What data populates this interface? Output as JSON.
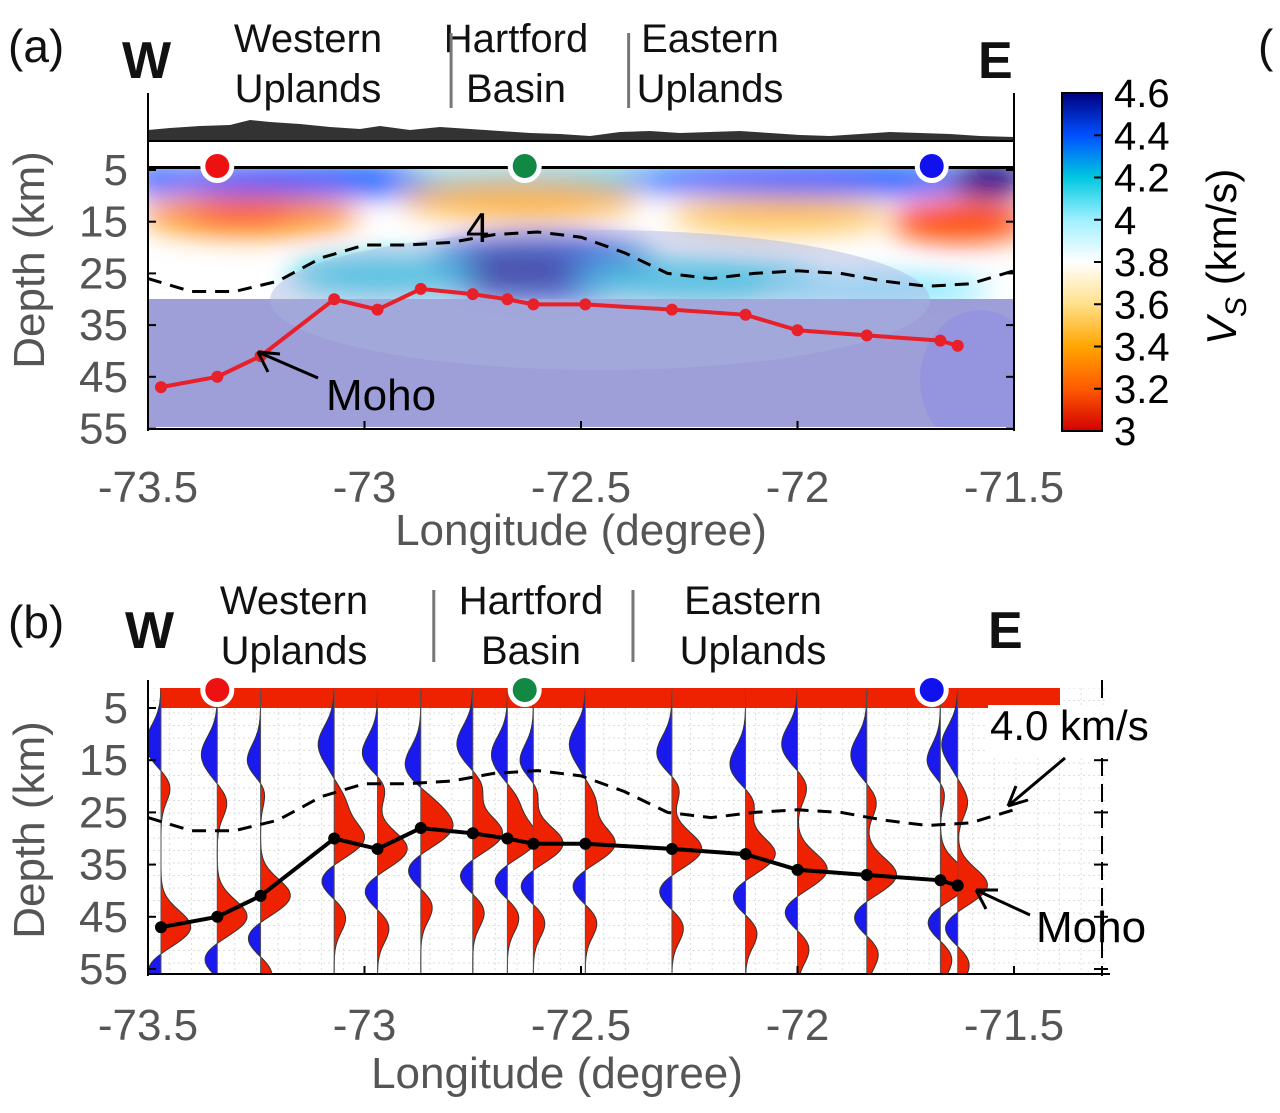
{
  "chart_data": [
    {
      "type": "heatmap",
      "panel_label": "(a)",
      "west_label": "W",
      "east_label": "E",
      "regions": [
        {
          "line1": "Western",
          "line2": "Uplands",
          "lon": -73.15
        },
        {
          "line1": "Hartford",
          "line2": "Basin",
          "lon": -72.6
        },
        {
          "line1": "Eastern",
          "line2": "Uplands",
          "lon": -72.15
        }
      ],
      "region_dividers": [
        -72.8,
        -72.39
      ],
      "xlabel": "Longitude (degree)",
      "ylabel": "Depth (km)",
      "xlim": [
        -73.5,
        -71.5
      ],
      "ylim": [
        55,
        0
      ],
      "xticks": [
        "-73.5",
        "-73",
        "-72.5",
        "-72",
        "-71.5"
      ],
      "xtick_values": [
        -73.5,
        -73,
        -72.5,
        -72,
        -71.5
      ],
      "yticks": [
        "5",
        "15",
        "25",
        "35",
        "45",
        "55"
      ],
      "ytick_values": [
        5,
        15,
        25,
        35,
        45,
        55
      ],
      "colorbar": {
        "label": "V",
        "label_sub": "S",
        "label_unit": " (km/s)",
        "ticks": [
          "4.6",
          "4.4",
          "4.2",
          "4",
          "3.8",
          "3.6",
          "3.4",
          "3.2",
          "3"
        ],
        "tick_values": [
          4.6,
          4.4,
          4.2,
          4.0,
          3.8,
          3.6,
          3.4,
          3.2,
          3.0
        ],
        "range": [
          3.0,
          4.6
        ],
        "colors": [
          "#d10000",
          "#ff5a00",
          "#ffa500",
          "#ffe08a",
          "#ffffff",
          "#9ff0ff",
          "#00c8e0",
          "#0050ff",
          "#000080"
        ]
      },
      "contour_label": "4",
      "contour_4kms": {
        "x": [
          -73.5,
          -73.4,
          -73.3,
          -73.2,
          -73.1,
          -73.0,
          -72.9,
          -72.8,
          -72.7,
          -72.6,
          -72.5,
          -72.4,
          -72.3,
          -72.2,
          -72.1,
          -72.0,
          -71.9,
          -71.8,
          -71.7,
          -71.6,
          -71.5
        ],
        "y": [
          26,
          28.5,
          28.5,
          26.5,
          22,
          19.5,
          19.5,
          19,
          17.5,
          17,
          18,
          21,
          25,
          26,
          25,
          24.5,
          25,
          26.5,
          27.5,
          27,
          24.5
        ]
      },
      "moho_label": "Moho",
      "moho": {
        "x": [
          -73.47,
          -73.34,
          -73.24,
          -73.07,
          -72.97,
          -72.87,
          -72.75,
          -72.67,
          -72.61,
          -72.49,
          -72.29,
          -72.12,
          -72.0,
          -71.84,
          -71.67,
          -71.63
        ],
        "y": [
          47,
          45,
          41,
          30,
          32,
          28,
          29,
          30,
          31,
          31,
          32,
          33,
          36,
          37,
          38,
          39
        ]
      },
      "stations": [
        {
          "lon": -73.34,
          "color": "#ee1111"
        },
        {
          "lon": -72.63,
          "color": "#118844"
        },
        {
          "lon": -71.69,
          "color": "#1111ee"
        }
      ],
      "masked_below_km": 30,
      "grid": false
    },
    {
      "type": "line",
      "panel_label": "(b)",
      "west_label": "W",
      "east_label": "E",
      "regions": [
        {
          "line1": "Western",
          "line2": "Uplands",
          "lon": -73.15
        },
        {
          "line1": "Hartford",
          "line2": "Basin",
          "lon": -72.6
        },
        {
          "line1": "Eastern",
          "line2": "Uplands",
          "lon": -72.05
        }
      ],
      "region_dividers": [
        -72.84,
        -72.38
      ],
      "xlabel": "Longitude (degree)",
      "ylabel": "Depth (km)",
      "xlim": [
        -73.5,
        -71.3
      ],
      "ylim": [
        55,
        0
      ],
      "xticks": [
        "-73.5",
        "-73",
        "-72.5",
        "-72",
        "-71.5"
      ],
      "xtick_values": [
        -73.5,
        -73,
        -72.5,
        -72,
        -71.5
      ],
      "yticks": [
        "5",
        "15",
        "25",
        "35",
        "45",
        "55"
      ],
      "ytick_values": [
        5,
        15,
        25,
        35,
        45,
        55
      ],
      "contour_label": "4.0 km/s",
      "contour_4kms": {
        "x": [
          -73.5,
          -73.4,
          -73.3,
          -73.2,
          -73.1,
          -73.0,
          -72.9,
          -72.8,
          -72.7,
          -72.6,
          -72.5,
          -72.4,
          -72.3,
          -72.2,
          -72.1,
          -72.0,
          -71.9,
          -71.8,
          -71.7,
          -71.6,
          -71.5
        ],
        "y": [
          26,
          28.5,
          28.5,
          26.5,
          22,
          19.5,
          19.5,
          19,
          17.5,
          17,
          18,
          21,
          25,
          26,
          25,
          24.5,
          25,
          26.5,
          27.5,
          27,
          24.5
        ]
      },
      "moho_label": "Moho",
      "moho": {
        "x": [
          -73.47,
          -73.34,
          -73.24,
          -73.07,
          -72.97,
          -72.87,
          -72.75,
          -72.67,
          -72.61,
          -72.49,
          -72.29,
          -72.12,
          -72.0,
          -71.84,
          -71.67,
          -71.63
        ],
        "y": [
          47,
          45,
          41,
          30,
          32,
          28,
          29,
          30,
          31,
          31,
          32,
          33,
          36,
          37,
          38,
          39
        ]
      },
      "trace_longitudes": [
        -73.47,
        -73.34,
        -73.24,
        -73.07,
        -72.97,
        -72.87,
        -72.75,
        -72.67,
        -72.61,
        -72.49,
        -72.29,
        -72.12,
        -72.0,
        -71.84,
        -71.67,
        -71.63
      ],
      "stations": [
        {
          "lon": -73.34,
          "color": "#ee1111"
        },
        {
          "lon": -72.63,
          "color": "#118844"
        },
        {
          "lon": -71.69,
          "color": "#1111ee"
        }
      ],
      "positive_color": "#ee2200",
      "negative_color": "#1a1aee",
      "grid": true
    }
  ]
}
